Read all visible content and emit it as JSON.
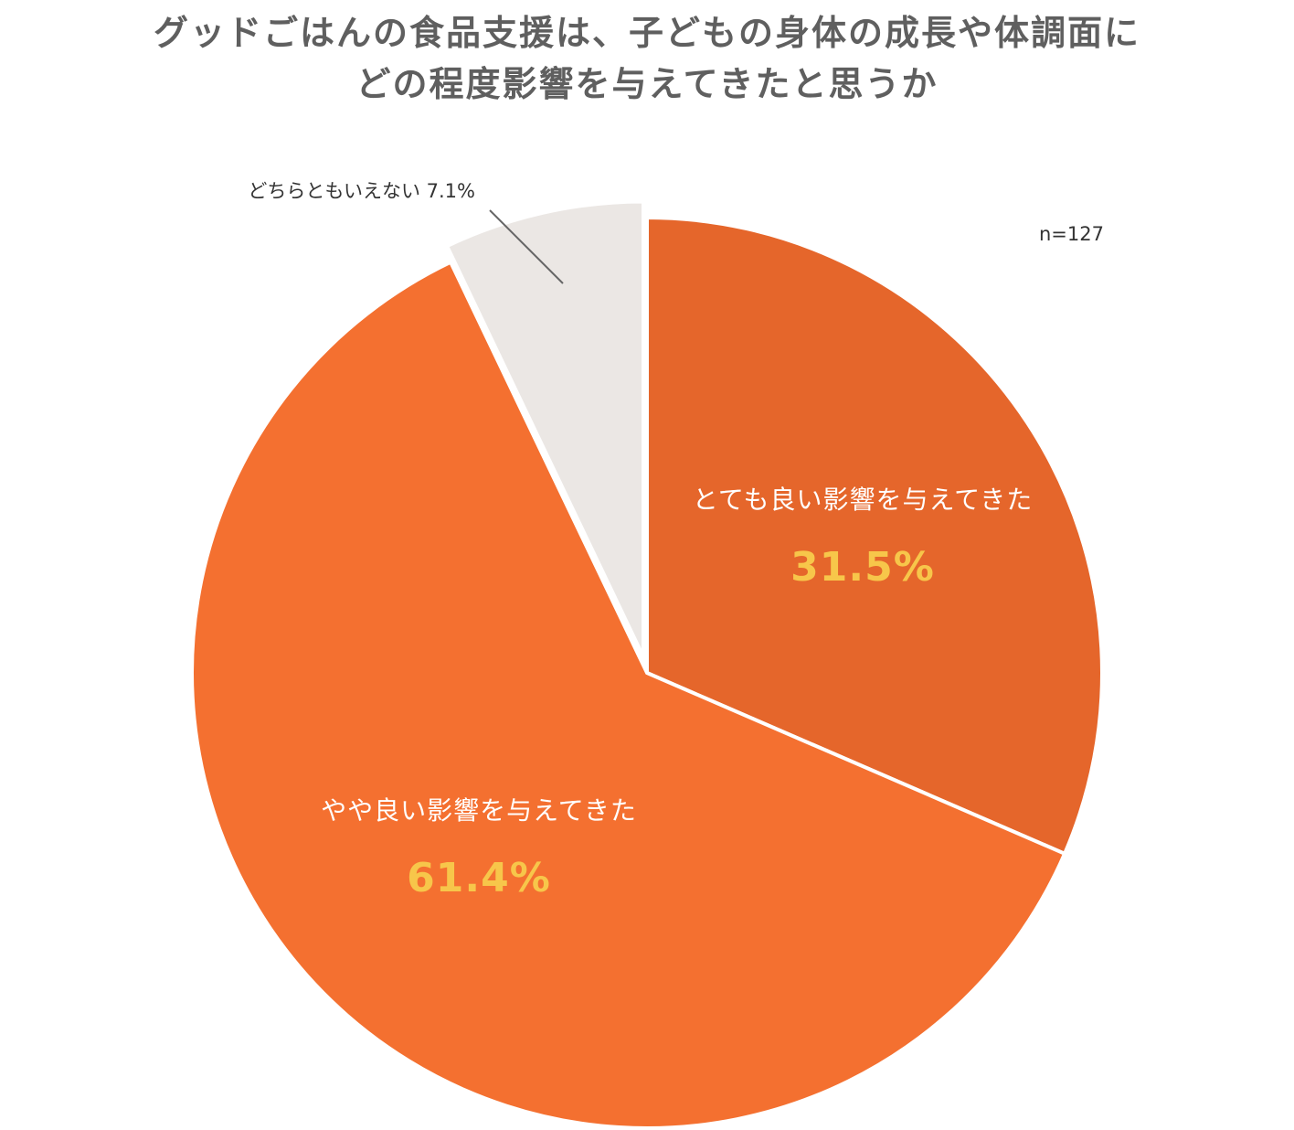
{
  "chart_data": {
    "type": "pie",
    "title_lines": [
      "グッドごはんの食品支援は、子どもの身体の成長や体調面に",
      "どの程度影響を与えてきたと思うか"
    ],
    "sample_size": "n=127",
    "slices": [
      {
        "name": "とても良い影響を与えてきた",
        "value": 31.5,
        "value_label": "31.5%",
        "color": "#e5662b"
      },
      {
        "name": "やや良い影響を与えてきた",
        "value": 61.4,
        "value_label": "61.4%",
        "color": "#f47030"
      },
      {
        "name": "どちらともいえない",
        "value": 7.1,
        "value_label": "7.1%",
        "color": "#ebe7e4"
      }
    ],
    "colors": {
      "title": "#5f5f5f",
      "inside_label": "#ffffff",
      "inside_value": "#f7c64a",
      "outside_label": "#333333",
      "leader_line": "#666666",
      "slice_border": "#ffffff"
    }
  }
}
